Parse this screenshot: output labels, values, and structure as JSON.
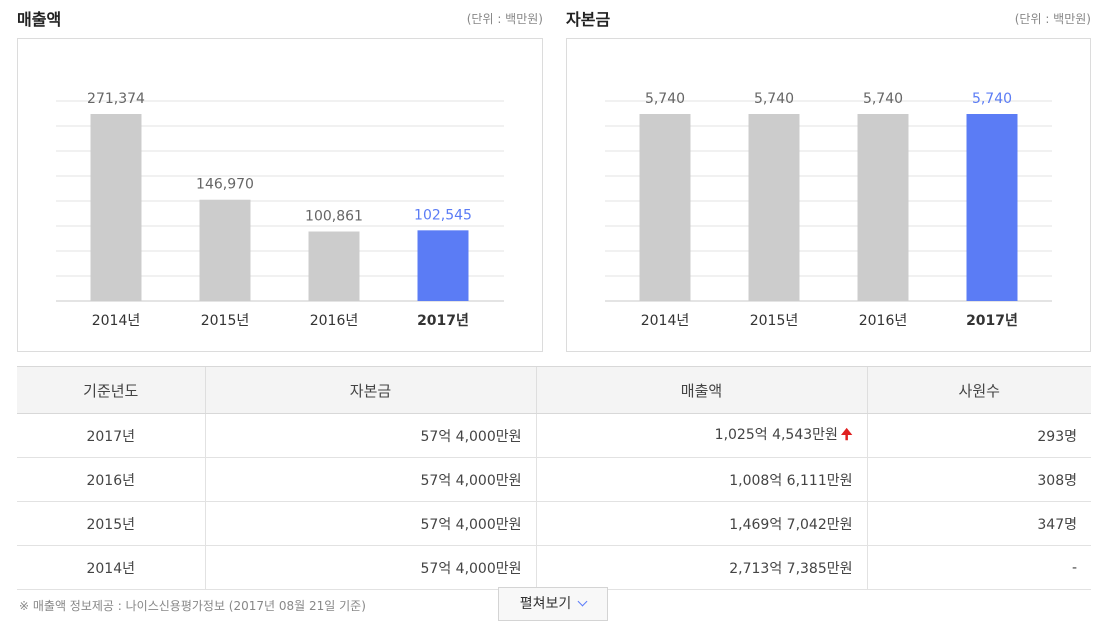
{
  "chart_data": [
    {
      "type": "bar",
      "title": "매출액",
      "unit_label": "(단위 : 백만원)",
      "categories": [
        "2014년",
        "2015년",
        "2016년",
        "2017년"
      ],
      "values": [
        271374,
        146970,
        100861,
        102545
      ],
      "value_labels": [
        "271,374",
        "146,970",
        "100,861",
        "102,545"
      ],
      "highlight_index": 3,
      "grid": true,
      "colors": {
        "bar": "#cccccc",
        "highlight": "#5b7cf5",
        "label": "#666666",
        "grid": "#e3e3e3"
      }
    },
    {
      "type": "bar",
      "title": "자본금",
      "unit_label": "(단위 : 백만원)",
      "categories": [
        "2014년",
        "2015년",
        "2016년",
        "2017년"
      ],
      "values": [
        5740,
        5740,
        5740,
        5740
      ],
      "value_labels": [
        "5,740",
        "5,740",
        "5,740",
        "5,740"
      ],
      "highlight_index": 3,
      "grid": true,
      "colors": {
        "bar": "#cccccc",
        "highlight": "#5b7cf5",
        "label": "#666666",
        "grid": "#e3e3e3"
      }
    }
  ],
  "table": {
    "headers": [
      "기준년도",
      "자본금",
      "매출액",
      "사원수"
    ],
    "rows": [
      {
        "year": "2017년",
        "capital": "57억 4,000만원",
        "revenue": "1,025억 4,543만원",
        "employees": "293명",
        "revenue_trend": "up"
      },
      {
        "year": "2016년",
        "capital": "57억 4,000만원",
        "revenue": "1,008억 6,111만원",
        "employees": "308명"
      },
      {
        "year": "2015년",
        "capital": "57억 4,000만원",
        "revenue": "1,469억 7,042만원",
        "employees": "347명"
      },
      {
        "year": "2014년",
        "capital": "57억 4,000만원",
        "revenue": "2,713억 7,385만원",
        "employees": "-"
      }
    ]
  },
  "footnote": "※ 매출액 정보제공 : 나이스신용평가정보 (2017년 08월 21일 기준)",
  "expand_button": {
    "label": "펼쳐보기",
    "icon": "chevron-down-icon"
  },
  "trend_icon": "up-arrow-icon"
}
